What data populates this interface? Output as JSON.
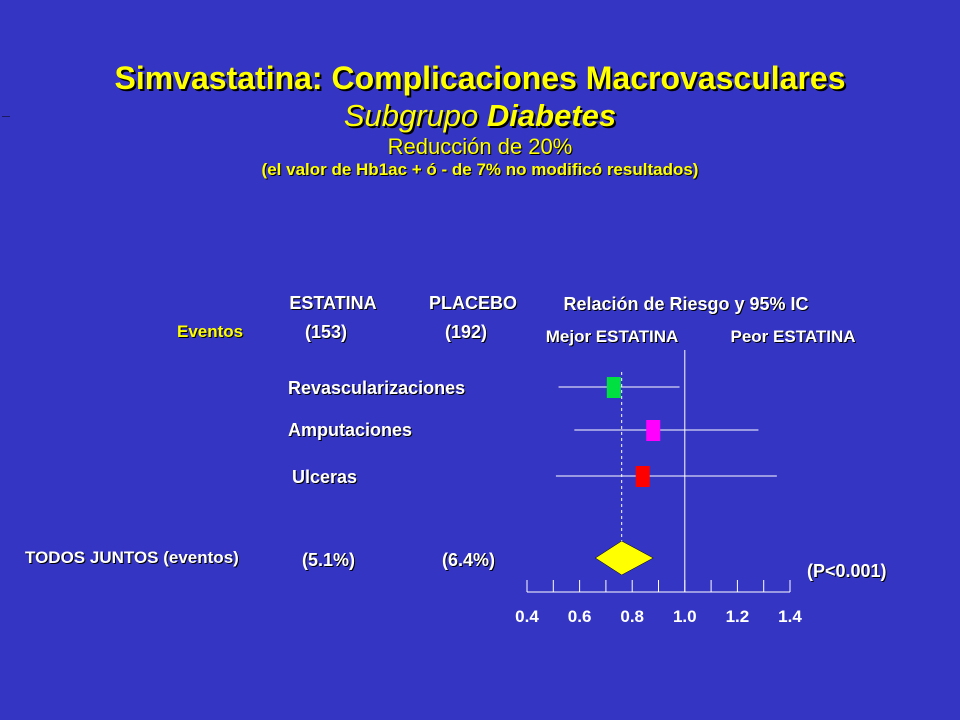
{
  "title": {
    "line1": "Simvastatina: Complicaciones Macrovasculares",
    "line2_plain": "Subgrupo ",
    "line2_bold": "Diabetes",
    "line3": "Reducción de 20%",
    "line4": "(el valor de Hb1ac + ó - de 7% no modificó resultados)"
  },
  "columns": {
    "events": "Eventos",
    "statin_head": "ESTATINA",
    "statin_n": "(153)",
    "placebo_head": "PLACEBO",
    "placebo_n": "(192)",
    "rr_head": "Relación de Riesgo y 95% IC",
    "better": "Mejor ESTATINA",
    "worse": "Peor ESTATINA"
  },
  "summary": {
    "label": "TODOS JUNTOS (eventos)",
    "statin_pct": "(5.1%)",
    "placebo_pct": "(6.4%)",
    "p_value": "(P<0.001)"
  },
  "chart_data": {
    "type": "forest",
    "x_ticks": [
      "0.4",
      "0.6",
      "0.8",
      "1.0",
      "1.2",
      "1.4"
    ],
    "xlim": [
      0.4,
      1.4
    ],
    "reference_line": 1.0,
    "summary_line": 0.76,
    "rows": [
      {
        "label": "Revascularizaciones",
        "estimate": 0.73,
        "ci_low": 0.52,
        "ci_high": 0.98,
        "color": "#00e040"
      },
      {
        "label": "Amputaciones",
        "estimate": 0.88,
        "ci_low": 0.58,
        "ci_high": 1.28,
        "color": "#ff00ff"
      },
      {
        "label": "Ulceras",
        "estimate": 0.84,
        "ci_low": 0.51,
        "ci_high": 1.35,
        "color": "#ff0000"
      }
    ],
    "summary": {
      "estimate": 0.76,
      "ci_low": 0.66,
      "ci_high": 0.88,
      "color": "#ffff00"
    }
  }
}
